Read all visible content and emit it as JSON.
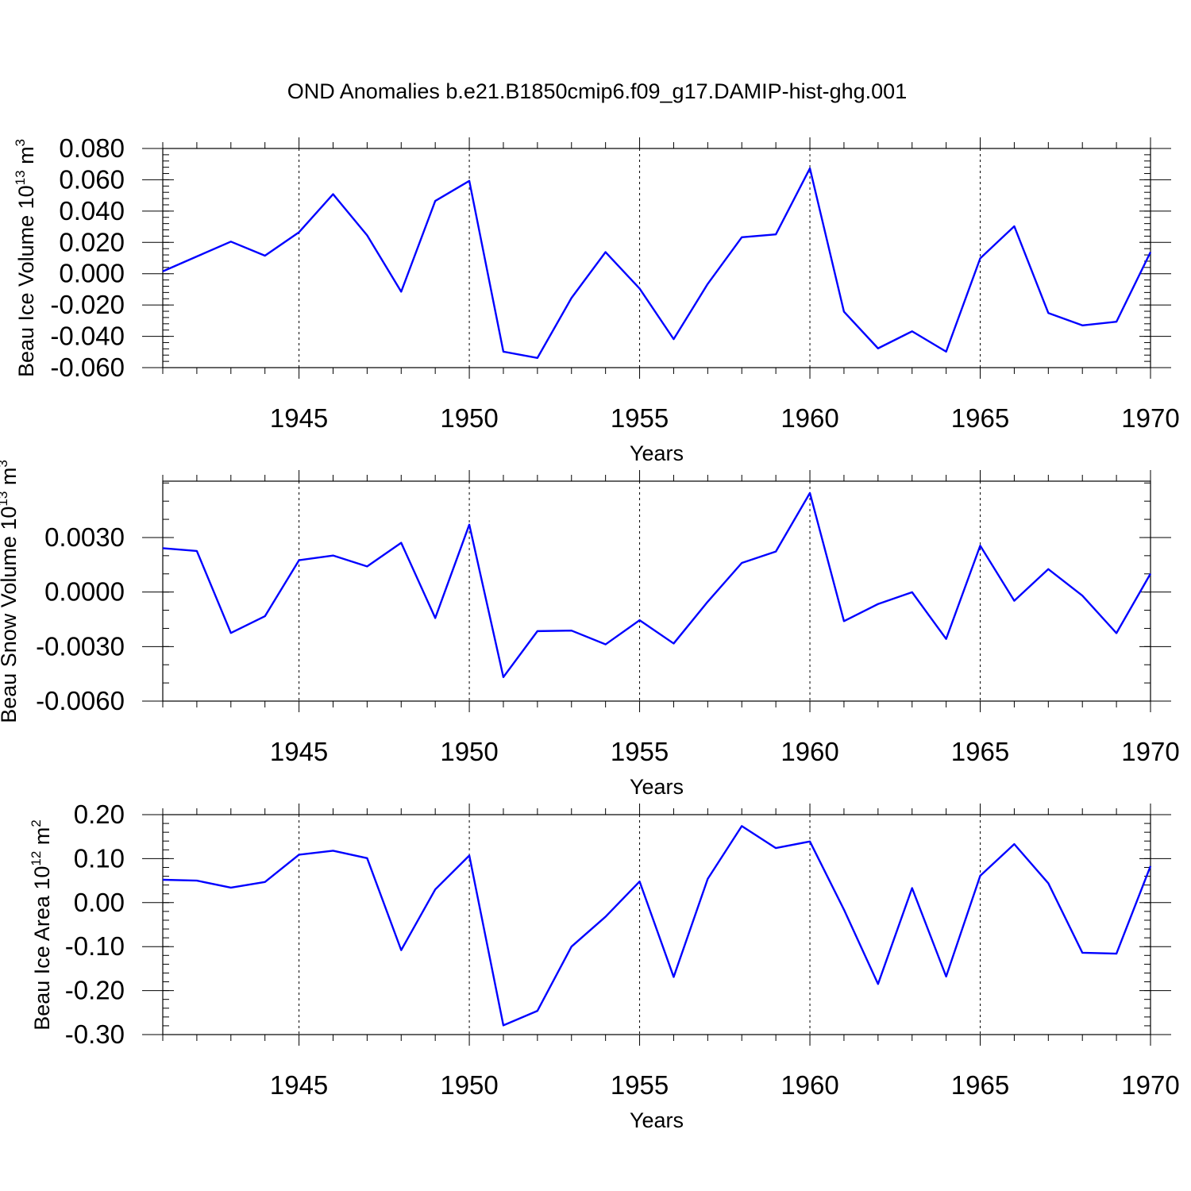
{
  "title": "OND Anomalies b.e21.B1850cmip6.f09_g17.DAMIP-hist-ghg.001",
  "chart_data": [
    {
      "type": "line",
      "ylabel": {
        "text": "Beau Ice Volume 10",
        "sup": "13",
        "mid": " m",
        "sup2": "3"
      },
      "xlabel": "Years",
      "xlim": [
        1941,
        1970
      ],
      "ylim": [
        -0.06,
        0.08
      ],
      "yticks": [
        -0.06,
        -0.04,
        -0.02,
        0.0,
        0.02,
        0.04,
        0.06,
        0.08
      ],
      "ytick_labels": [
        "-0.060",
        "-0.040",
        "-0.020",
        "0.000",
        "0.020",
        "0.040",
        "0.060",
        "0.080"
      ],
      "yminor_step": 0.004,
      "xticks": [
        1945,
        1950,
        1955,
        1960,
        1965,
        1970
      ],
      "xtick_labels": [
        "1945",
        "1950",
        "1955",
        "1960",
        "1965",
        "1970"
      ],
      "grid_x": [
        1945,
        1950,
        1955,
        1960,
        1965
      ],
      "line_color": "#0000ff",
      "x": [
        1941,
        1942,
        1943,
        1944,
        1945,
        1946,
        1947,
        1948,
        1949,
        1950,
        1951,
        1952,
        1953,
        1954,
        1955,
        1956,
        1957,
        1958,
        1959,
        1960,
        1961,
        1962,
        1963,
        1964,
        1965,
        1966,
        1967,
        1968,
        1969,
        1970
      ],
      "values": [
        0.0015,
        0.011,
        0.0205,
        0.0115,
        0.0265,
        0.0508,
        0.0245,
        -0.0115,
        0.0465,
        0.0593,
        -0.0498,
        -0.0538,
        -0.0155,
        0.0138,
        -0.0095,
        -0.0418,
        -0.0065,
        0.0233,
        0.0251,
        0.0673,
        -0.0243,
        -0.0477,
        -0.0368,
        -0.0498,
        0.0098,
        0.0303,
        -0.0251,
        -0.033,
        -0.0307,
        0.0138
      ]
    },
    {
      "type": "line",
      "ylabel": {
        "text": "Beau Snow Volume 10",
        "sup": "13",
        "mid": " m",
        "sup2": "3"
      },
      "xlabel": "Years",
      "xlim": [
        1941,
        1970
      ],
      "ylim": [
        -0.006,
        0.0061
      ],
      "yticks": [
        -0.006,
        -0.003,
        0.0,
        0.003
      ],
      "ytick_labels": [
        "-0.0060",
        "-0.0030",
        "0.0000",
        "0.0030"
      ],
      "yminor_step": 0.001,
      "xticks": [
        1945,
        1950,
        1955,
        1960,
        1965,
        1970
      ],
      "xtick_labels": [
        "1945",
        "1950",
        "1955",
        "1960",
        "1965",
        "1970"
      ],
      "grid_x": [
        1945,
        1950,
        1955,
        1960,
        1965
      ],
      "line_color": "#0000ff",
      "x": [
        1941,
        1942,
        1943,
        1944,
        1945,
        1946,
        1947,
        1948,
        1949,
        1950,
        1951,
        1952,
        1953,
        1954,
        1955,
        1956,
        1957,
        1958,
        1959,
        1960,
        1961,
        1962,
        1963,
        1964,
        1965,
        1966,
        1967,
        1968,
        1969,
        1970
      ],
      "values": [
        0.00241,
        0.00226,
        -0.00225,
        -0.00133,
        0.00175,
        0.00201,
        0.00141,
        0.00271,
        -0.00143,
        0.00371,
        -0.00468,
        -0.00215,
        -0.00212,
        -0.00288,
        -0.00155,
        -0.00283,
        -0.00053,
        0.0016,
        0.00223,
        0.00545,
        -0.0016,
        -0.00066,
        -1e-05,
        -0.00258,
        0.00255,
        -0.00048,
        0.00126,
        -0.0002,
        -0.00226,
        0.00101
      ]
    },
    {
      "type": "line",
      "ylabel": {
        "text": "Beau Ice Area 10",
        "sup": "12",
        "mid": " m",
        "sup2": "2"
      },
      "xlabel": "Years",
      "xlim": [
        1941,
        1970
      ],
      "ylim": [
        -0.3,
        0.2
      ],
      "yticks": [
        -0.3,
        -0.2,
        -0.1,
        0.0,
        0.1,
        0.2
      ],
      "ytick_labels": [
        "-0.30",
        "-0.20",
        "-0.10",
        "0.00",
        "0.10",
        "0.20"
      ],
      "yminor_step": 0.02,
      "xticks": [
        1945,
        1950,
        1955,
        1960,
        1965,
        1970
      ],
      "xtick_labels": [
        "1945",
        "1950",
        "1955",
        "1960",
        "1965",
        "1970"
      ],
      "grid_x": [
        1945,
        1950,
        1955,
        1960,
        1965
      ],
      "line_color": "#0000ff",
      "x": [
        1941,
        1942,
        1943,
        1944,
        1945,
        1946,
        1947,
        1948,
        1949,
        1950,
        1951,
        1952,
        1953,
        1954,
        1955,
        1956,
        1957,
        1958,
        1959,
        1960,
        1961,
        1962,
        1963,
        1964,
        1965,
        1966,
        1967,
        1968,
        1969,
        1970
      ],
      "values": [
        0.052,
        0.05,
        0.034,
        0.047,
        0.109,
        0.118,
        0.101,
        -0.108,
        0.03,
        0.107,
        -0.279,
        -0.246,
        -0.1,
        -0.032,
        0.048,
        -0.169,
        0.054,
        0.174,
        0.124,
        0.139,
        -0.016,
        -0.185,
        0.033,
        -0.168,
        0.061,
        0.133,
        0.044,
        -0.114,
        -0.116,
        0.083
      ]
    }
  ]
}
